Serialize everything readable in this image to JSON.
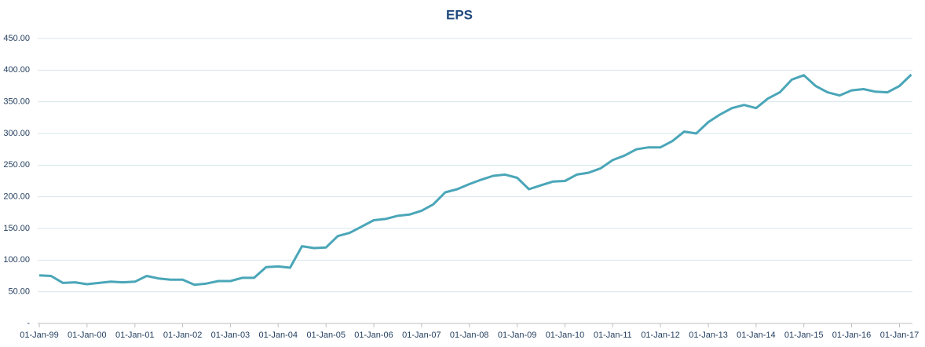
{
  "chart_data": {
    "type": "line",
    "title": "EPS",
    "x": [
      "1999-01-01",
      "1999-04-01",
      "1999-07-01",
      "1999-10-01",
      "2000-01-01",
      "2000-04-01",
      "2000-07-01",
      "2000-10-01",
      "2001-01-01",
      "2001-04-01",
      "2001-07-01",
      "2001-10-01",
      "2002-01-01",
      "2002-04-01",
      "2002-07-01",
      "2002-10-01",
      "2003-01-01",
      "2003-04-01",
      "2003-07-01",
      "2003-10-01",
      "2004-01-01",
      "2004-04-01",
      "2004-07-01",
      "2004-10-01",
      "2005-01-01",
      "2005-04-01",
      "2005-07-01",
      "2005-10-01",
      "2006-01-01",
      "2006-04-01",
      "2006-07-01",
      "2006-10-01",
      "2007-01-01",
      "2007-04-01",
      "2007-07-01",
      "2007-10-01",
      "2008-01-01",
      "2008-04-01",
      "2008-07-01",
      "2008-10-01",
      "2009-01-01",
      "2009-04-01",
      "2009-07-01",
      "2009-10-01",
      "2010-01-01",
      "2010-04-01",
      "2010-07-01",
      "2010-10-01",
      "2011-01-01",
      "2011-04-01",
      "2011-07-01",
      "2011-10-01",
      "2012-01-01",
      "2012-04-01",
      "2012-07-01",
      "2012-10-01",
      "2013-01-01",
      "2013-04-01",
      "2013-07-01",
      "2013-10-01",
      "2014-01-01",
      "2014-04-01",
      "2014-07-01",
      "2014-10-01",
      "2015-01-01",
      "2015-04-01",
      "2015-07-01",
      "2015-10-01",
      "2016-01-01",
      "2016-04-01",
      "2016-07-01",
      "2016-10-01",
      "2017-01-01",
      "2017-04-01"
    ],
    "series": [
      {
        "name": "EPS",
        "color": "#4aa6b8",
        "values": [
          76,
          75,
          64,
          65,
          62,
          64,
          66,
          65,
          66,
          75,
          71,
          69,
          69,
          61,
          63,
          67,
          67,
          72,
          72,
          89,
          90,
          88,
          122,
          119,
          120,
          138,
          143,
          153,
          163,
          165,
          170,
          172,
          178,
          188,
          207,
          212,
          220,
          227,
          233,
          235,
          230,
          212,
          218,
          224,
          225,
          235,
          238,
          245,
          258,
          265,
          275,
          278,
          278,
          288,
          303,
          300,
          318,
          330,
          340,
          345,
          340,
          355,
          365,
          385,
          392,
          375,
          365,
          360,
          368,
          370,
          366,
          365,
          375,
          393
        ]
      }
    ],
    "xlim": [
      "1998-12-20",
      "2017-04-10"
    ],
    "xticks": [
      {
        "value": "1999-01-01",
        "label": "01-Jan-99"
      },
      {
        "value": "2000-01-01",
        "label": "01-Jan-00"
      },
      {
        "value": "2001-01-01",
        "label": "01-Jan-01"
      },
      {
        "value": "2002-01-01",
        "label": "01-Jan-02"
      },
      {
        "value": "2003-01-01",
        "label": "01-Jan-03"
      },
      {
        "value": "2004-01-01",
        "label": "01-Jan-04"
      },
      {
        "value": "2005-01-01",
        "label": "01-Jan-05"
      },
      {
        "value": "2006-01-01",
        "label": "01-Jan-06"
      },
      {
        "value": "2007-01-01",
        "label": "01-Jan-07"
      },
      {
        "value": "2008-01-01",
        "label": "01-Jan-08"
      },
      {
        "value": "2009-01-01",
        "label": "01-Jan-09"
      },
      {
        "value": "2010-01-01",
        "label": "01-Jan-10"
      },
      {
        "value": "2011-01-01",
        "label": "01-Jan-11"
      },
      {
        "value": "2012-01-01",
        "label": "01-Jan-12"
      },
      {
        "value": "2013-01-01",
        "label": "01-Jan-13"
      },
      {
        "value": "2014-01-01",
        "label": "01-Jan-14"
      },
      {
        "value": "2015-01-01",
        "label": "01-Jan-15"
      },
      {
        "value": "2016-01-01",
        "label": "01-Jan-16"
      },
      {
        "value": "2017-01-01",
        "label": "01-Jan-17"
      }
    ],
    "ylim": [
      0,
      450
    ],
    "yticks": [
      {
        "value": 0,
        "label": "-"
      },
      {
        "value": 50,
        "label": "50.00"
      },
      {
        "value": 100,
        "label": "100.00"
      },
      {
        "value": 150,
        "label": "150.00"
      },
      {
        "value": 200,
        "label": "200.00"
      },
      {
        "value": 250,
        "label": "250.00"
      },
      {
        "value": 300,
        "label": "300.00"
      },
      {
        "value": 350,
        "label": "350.00"
      },
      {
        "value": 400,
        "label": "400.00"
      },
      {
        "value": 450,
        "label": "450.00"
      }
    ],
    "grid": true
  }
}
